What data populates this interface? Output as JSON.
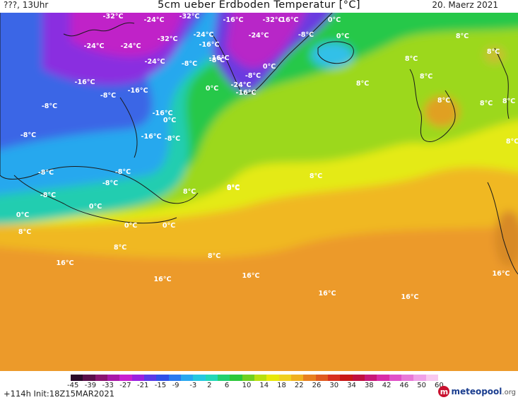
{
  "header": {
    "left": "???, 13Uhr",
    "title": "5cm ueber Erdboden Temperatur [°C]",
    "date": "20. Maerz 2021"
  },
  "footer": {
    "run": "+114h  Init:18Z15MAR2021",
    "logo": {
      "main": "meteopool",
      "suffix": ".org"
    },
    "scale_ticks": [
      "-45",
      "-39",
      "-33",
      "-27",
      "-21",
      "-15",
      "-9",
      "-3",
      "2",
      "6",
      "10",
      "14",
      "18",
      "22",
      "26",
      "30",
      "34",
      "38",
      "42",
      "46",
      "50",
      "60"
    ],
    "scale_colors": [
      "#2a0a2a",
      "#5a0f4a",
      "#8a1470",
      "#a818a8",
      "#c820d0",
      "#9a22e0",
      "#5a3ae8",
      "#3050e8",
      "#2a7af0",
      "#28a8f0",
      "#26c8e0",
      "#22d8b8",
      "#22d070",
      "#2cc83a",
      "#70d020",
      "#b8e010",
      "#e8e80a",
      "#f0d020",
      "#f0b020",
      "#e88020",
      "#e05a20",
      "#d83020",
      "#c81818",
      "#c01040",
      "#c81878",
      "#d82ca8",
      "#e050c8",
      "#e878d8",
      "#f0a0e8",
      "#f8c8f0"
    ]
  },
  "map": {
    "labels": [
      {
        "text": "-32°C"
      },
      {
        "text": "-32°C"
      },
      {
        "text": "-24°C"
      },
      {
        "text": "-16°C"
      },
      {
        "text": "-32°C"
      },
      {
        "text": "-16°C"
      },
      {
        "text": "0°C"
      },
      {
        "text": "-24°C"
      },
      {
        "text": "-24°C"
      },
      {
        "text": "-32°C"
      },
      {
        "text": "-24°C"
      },
      {
        "text": "-16°C"
      },
      {
        "text": "-24°C"
      },
      {
        "text": "-8°C"
      },
      {
        "text": "0°C"
      },
      {
        "text": "8°C"
      },
      {
        "text": "-24°C"
      },
      {
        "text": "-8°C"
      },
      {
        "text": "-8°C"
      },
      {
        "text": "0°C"
      },
      {
        "text": "8°C"
      },
      {
        "text": "8°C"
      },
      {
        "text": "-16°C"
      },
      {
        "text": "-16°C"
      },
      {
        "text": "-8°C"
      },
      {
        "text": "-24°C"
      },
      {
        "text": "0°C"
      },
      {
        "text": "-16°C"
      },
      {
        "text": "8°C"
      },
      {
        "text": "8°C"
      },
      {
        "text": "-8°C"
      },
      {
        "text": "-8°C"
      },
      {
        "text": "-16°C"
      },
      {
        "text": "0°C"
      },
      {
        "text": "8°C"
      },
      {
        "text": "8°C"
      },
      {
        "text": "-8°C"
      },
      {
        "text": "-16°C"
      },
      {
        "text": "-16°C"
      },
      {
        "text": "-8°C"
      },
      {
        "text": "8°C"
      },
      {
        "text": "-8°C"
      },
      {
        "text": "-8°C"
      },
      {
        "text": "8°C"
      },
      {
        "text": "-8°C"
      },
      {
        "text": "-8°C"
      },
      {
        "text": "0°C"
      },
      {
        "text": "8°C"
      },
      {
        "text": "8°C"
      },
      {
        "text": "0°C"
      },
      {
        "text": "0°C"
      },
      {
        "text": "0°C"
      },
      {
        "text": "0°C"
      },
      {
        "text": "8°C"
      },
      {
        "text": "8°C"
      },
      {
        "text": "8°C"
      },
      {
        "text": "8°C"
      },
      {
        "text": "16°C"
      },
      {
        "text": "16°C"
      },
      {
        "text": "16°C"
      },
      {
        "text": "16°C"
      },
      {
        "text": "16°C"
      },
      {
        "text": "16°C"
      }
    ]
  }
}
